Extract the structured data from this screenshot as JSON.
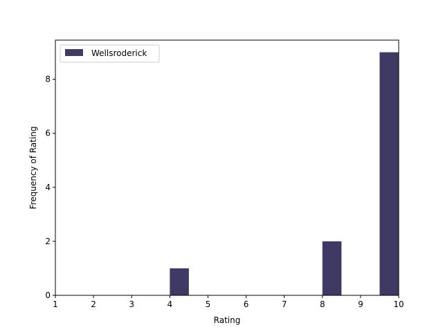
{
  "chart_data": {
    "type": "bar",
    "title": "",
    "xlabel": "Rating",
    "ylabel": "Frequency of Rating",
    "xlim": [
      1,
      10
    ],
    "ylim": [
      0,
      9.45
    ],
    "xticks": [
      1,
      2,
      3,
      4,
      5,
      6,
      7,
      8,
      9,
      10
    ],
    "yticks": [
      0,
      2,
      4,
      6,
      8
    ],
    "grid": false,
    "legend_position": "top-left",
    "series": [
      {
        "name": "Wellsroderick",
        "color": "#3f3a63",
        "bins": [
          {
            "start": 4.0,
            "end": 4.5,
            "count": 1
          },
          {
            "start": 8.0,
            "end": 8.5,
            "count": 2
          },
          {
            "start": 9.5,
            "end": 10.0,
            "count": 9
          }
        ]
      }
    ]
  }
}
